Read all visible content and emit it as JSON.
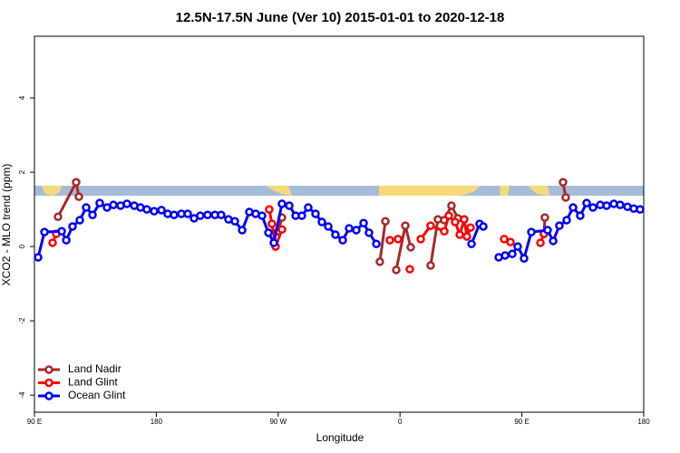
{
  "chart_data": {
    "type": "line",
    "title": "12.5N-17.5N June (Ver 10)   2015-01-01 to 2020-12-18",
    "xlabel": "Longitude",
    "ylabel": "XCO2 - MLO trend (ppm)",
    "xlim": [
      90,
      540
    ],
    "xticks": [
      {
        "value": 90,
        "label": "90 E"
      },
      {
        "value": 180,
        "label": "180"
      },
      {
        "value": 270,
        "label": "90 W"
      },
      {
        "value": 360,
        "label": "0"
      },
      {
        "value": 450,
        "label": "90 E"
      },
      {
        "value": 540,
        "label": "180"
      }
    ],
    "ylim": [
      -4.46,
      5.66
    ],
    "yticks": [
      -4,
      -2,
      0,
      2,
      4
    ],
    "legend": "bottom-left",
    "series": [
      {
        "name": "Land Nadir",
        "color": "#a52a2a",
        "x": [
          107.4,
          120.8,
          122.8,
          null,
          270.1,
          272.8,
          null,
          345.1,
          349.2,
          null,
          357.2,
          363.9,
          367.9,
          null,
          382.6,
          388.0,
          392.7,
          398.0,
          402.7,
          null,
          466.3,
          467.0,
          null,
          480.4,
          482.4
        ],
        "values": [
          0.8,
          1.73,
          1.34,
          null,
          0.41,
          0.78,
          null,
          -0.41,
          0.68,
          null,
          -0.63,
          0.56,
          -0.02,
          null,
          -0.51,
          0.73,
          0.71,
          1.1,
          0.76,
          null,
          0.34,
          0.78,
          null,
          1.73,
          1.32
        ]
      },
      {
        "name": "Land Glint",
        "color": "#ff0000",
        "x": [
          103.4,
          106.1,
          null,
          263.4,
          265.4,
          268.1,
          272.8,
          null,
          352.5,
          358.5,
          null,
          367.2,
          null,
          375.3,
          382.6,
          392.7,
          396.0,
          400.7,
          404.1,
          407.4,
          409.4,
          412.1,
          null,
          436.9,
          441.6,
          null,
          463.7,
          466.3
        ],
        "values": [
          0.1,
          0.34,
          null,
          1.0,
          0.61,
          0,
          0.46,
          null,
          0.17,
          0.2,
          null,
          -0.61,
          null,
          0.2,
          0.56,
          0.41,
          0.83,
          0.66,
          0.32,
          0.73,
          0.27,
          0.51,
          null,
          0.2,
          0.12,
          null,
          0.1,
          0.34
        ]
      },
      {
        "name": "Ocean Glint",
        "color": "#0000ff",
        "x": [
          92.7,
          97.4,
          110.1,
          113.5,
          118.1,
          123.5,
          128.2,
          132.9,
          138.2,
          143.6,
          148.3,
          153.6,
          158.3,
          163.7,
          168.3,
          173.0,
          178.4,
          183.8,
          188.4,
          193.1,
          198.5,
          203.2,
          207.9,
          212.5,
          217.9,
          223.3,
          227.9,
          233.3,
          238.0,
          243.4,
          248.7,
          253.4,
          258.1,
          262.8,
          266.8,
          272.8,
          278.2,
          282.9,
          287.5,
          292.2,
          297.6,
          302.3,
          307.0,
          312.3,
          317.7,
          322.4,
          327.7,
          333.1,
          337.1,
          342.5,
          null,
          412.8,
          418.8,
          421.5,
          null,
          432.9,
          437.6,
          442.9,
          446.9,
          451.6,
          457.0,
          469.0,
          473.1,
          477.7,
          483.1,
          487.8,
          493.1,
          497.8,
          502.5,
          507.9,
          512.6,
          517.9,
          522.6,
          528.0,
          532.6,
          537.3
        ],
        "values": [
          -0.29,
          0.39,
          0.41,
          0.17,
          0.54,
          0.71,
          1.05,
          0.85,
          1.17,
          1.05,
          1.12,
          1.1,
          1.15,
          1.1,
          1.05,
          1.0,
          0.95,
          0.98,
          0.88,
          0.85,
          0.88,
          0.88,
          0.76,
          0.83,
          0.85,
          0.85,
          0.85,
          0.73,
          0.68,
          0.44,
          0.93,
          0.88,
          0.83,
          0.37,
          0.1,
          1.15,
          1.1,
          0.83,
          0.83,
          1.05,
          0.88,
          0.66,
          0.54,
          0.32,
          0.17,
          0.49,
          0.44,
          0.63,
          0.37,
          0.07,
          null,
          0.07,
          0.61,
          0.54,
          null,
          -0.29,
          -0.24,
          -0.2,
          0,
          -0.32,
          0.39,
          0.44,
          0.15,
          0.56,
          0.71,
          1.05,
          0.83,
          1.17,
          1.05,
          1.12,
          1.1,
          1.15,
          1.12,
          1.07,
          1.02,
          1.0
        ]
      }
    ]
  }
}
